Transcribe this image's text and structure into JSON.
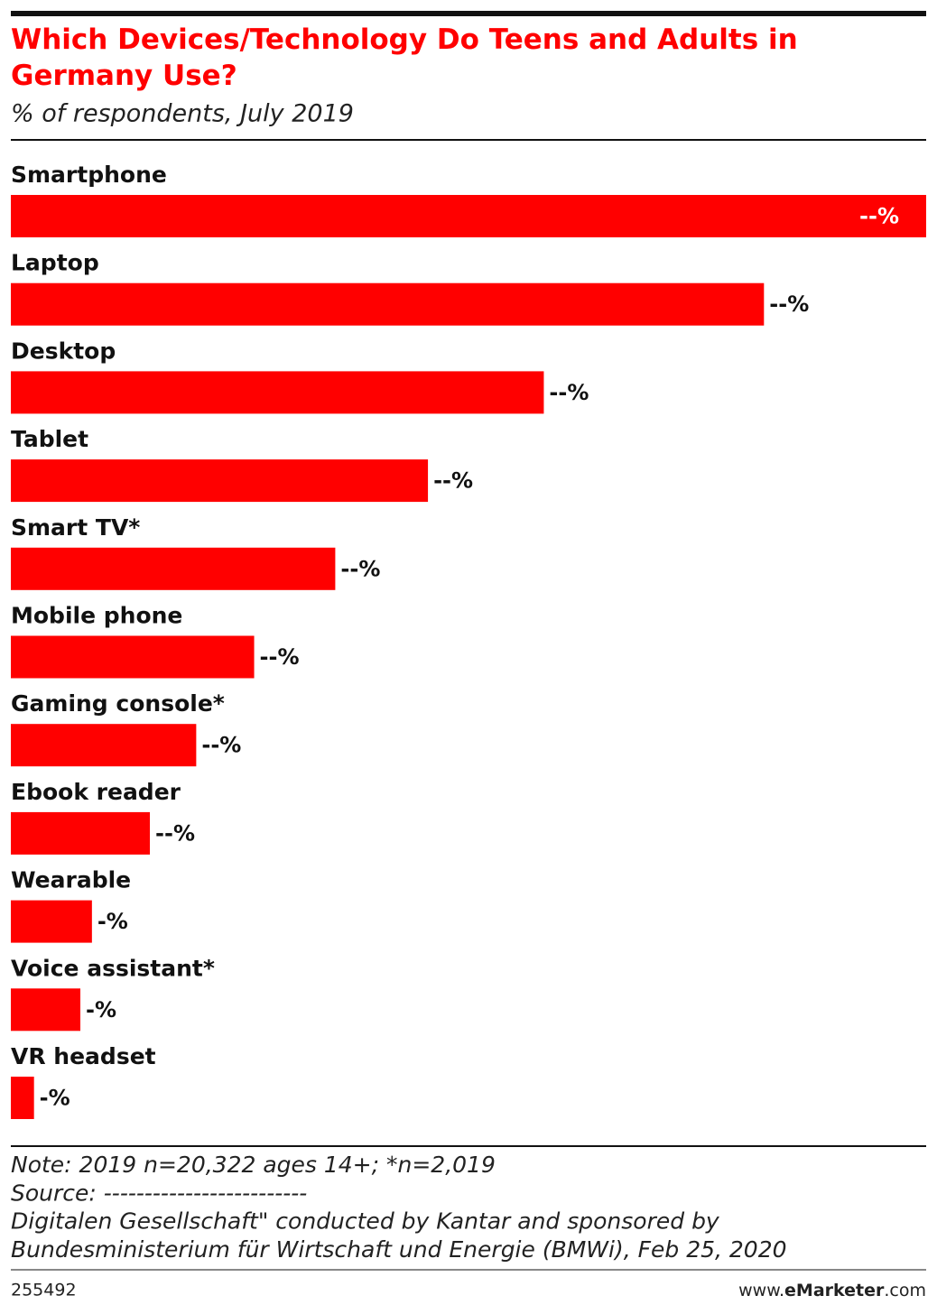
{
  "chart_data": {
    "type": "bar",
    "orientation": "horizontal",
    "title": "Which Devices/Technology Do Teens and Adults in Germany Use?",
    "subtitle": "% of respondents, July 2019",
    "categories": [
      "Smartphone",
      "Laptop",
      "Desktop",
      "Tablet",
      "Smart TV*",
      "Mobile phone",
      "Gaming console*",
      "Ebook reader",
      "Wearable",
      "Voice assistant*",
      "VR headset"
    ],
    "values": [
      79,
      65,
      46,
      36,
      28,
      21,
      16,
      12,
      7,
      6,
      2
    ],
    "value_labels": [
      "--%",
      "--%",
      "--%",
      "--%",
      "--%",
      "--%",
      "--%",
      "--%",
      "-%",
      "-%",
      "-%"
    ],
    "color": "#ff0000",
    "notes": [
      "Note: 2019 n=20,322 ages 14+; *n=2,019",
      "Source: -------------------------",
      "Digitalen Gesellschaft\" conducted by Kantar and sponsored by",
      "Bundesministerium für Wirtschaft und Energie (BMWi), Feb 25, 2020"
    ],
    "chart_id": "255492",
    "site": [
      "www.",
      "eMarketer",
      ".com"
    ]
  }
}
